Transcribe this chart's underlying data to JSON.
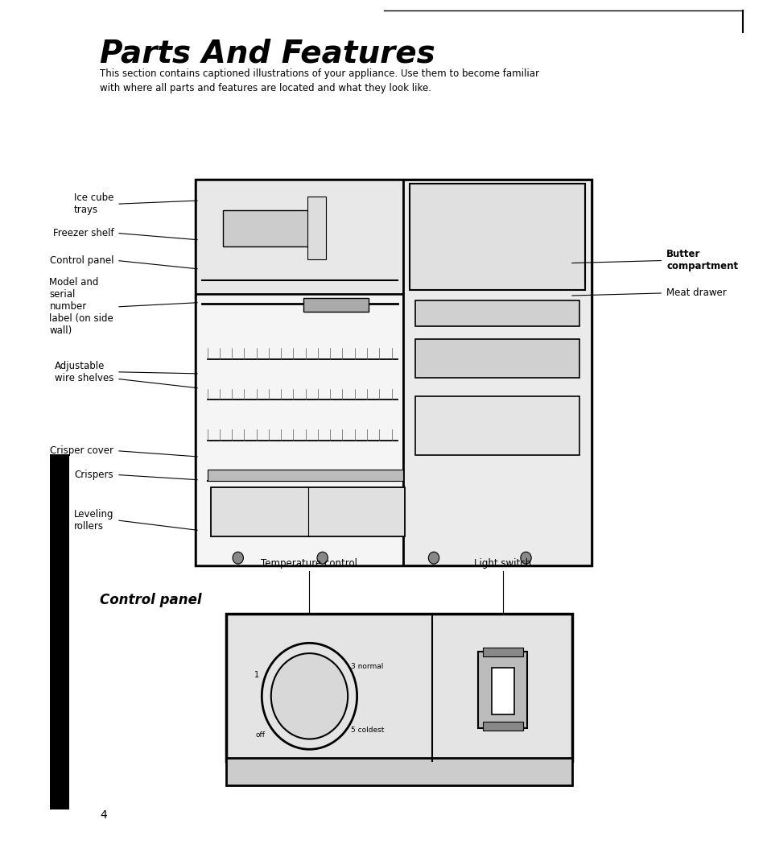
{
  "title": "Parts And Features",
  "subtitle": "This section contains captioned illustrations of your appliance. Use them to become familiar\nwith where all parts and features are located and what they look like.",
  "section2_title": "Control panel",
  "label_temp_control": "Temperature control",
  "label_light_switch": "Light switch",
  "page_number": "4",
  "bg_color": "#ffffff",
  "text_color": "#000000"
}
